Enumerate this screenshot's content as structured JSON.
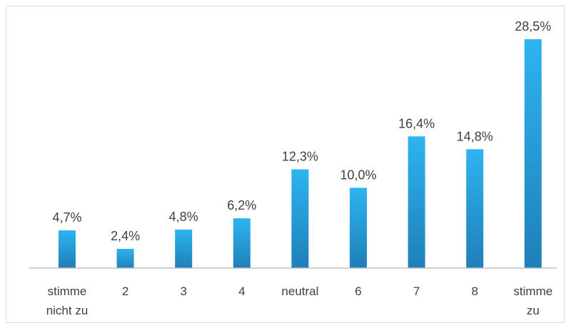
{
  "chart_data": {
    "type": "bar",
    "categories": [
      [
        "stimme",
        "nicht zu"
      ],
      [
        "2"
      ],
      [
        "3"
      ],
      [
        "4"
      ],
      [
        "neutral"
      ],
      [
        "6"
      ],
      [
        "7"
      ],
      [
        "8"
      ],
      [
        "stimme",
        "zu"
      ]
    ],
    "values": [
      4.7,
      2.4,
      4.8,
      6.2,
      12.3,
      10.0,
      16.4,
      14.8,
      28.5
    ],
    "value_labels": [
      "4,7%",
      "2,4%",
      "4,8%",
      "6,2%",
      "12,3%",
      "10,0%",
      "16,4%",
      "14,8%",
      "28,5%"
    ],
    "ylim": [
      0,
      28.5
    ],
    "grid": false,
    "legend": "none",
    "colors": {
      "bar_top": "#2db4f0",
      "bar_bottom": "#1f7fb8",
      "axis": "#bfbfbf",
      "text": "#404040",
      "border": "#d9d9d9"
    }
  }
}
